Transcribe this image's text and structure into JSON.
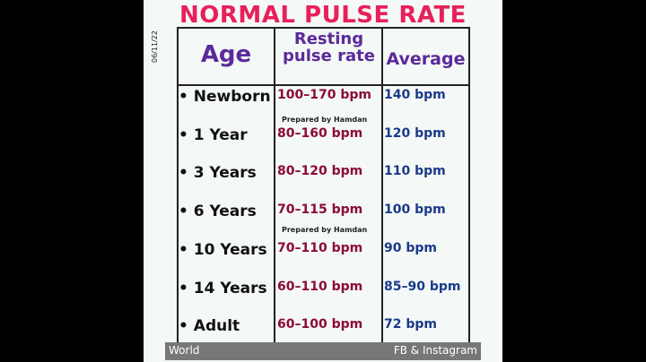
{
  "title": "NORMAL PULSE RATE",
  "date": "06/11/22",
  "table": {
    "headers": [
      "Age",
      "Resting pulse rate",
      "Average"
    ],
    "rows": [
      [
        "• Newborn",
        "100–170 bpm",
        "140 bpm"
      ],
      [
        "• 1 Year",
        "80–160 bpm",
        "120 bpm"
      ],
      [
        "• 3 Years",
        "80–120 bpm",
        "110 bpm"
      ],
      [
        "• 6 Years",
        "70–115 bpm",
        "100 bpm"
      ],
      [
        "• 10 Years",
        "70–110 bpm",
        "90 bpm"
      ],
      [
        "• 14 Years",
        "60–110 bpm",
        "85–90 bpm"
      ],
      [
        "• Adult",
        "60–100 bpm",
        "72 bpm"
      ]
    ]
  },
  "watermarks": [
    "Prepared by Hamdan",
    "Prepared by Hamdan"
  ],
  "footer": {
    "left": "World",
    "right": "FB & Instagram"
  }
}
